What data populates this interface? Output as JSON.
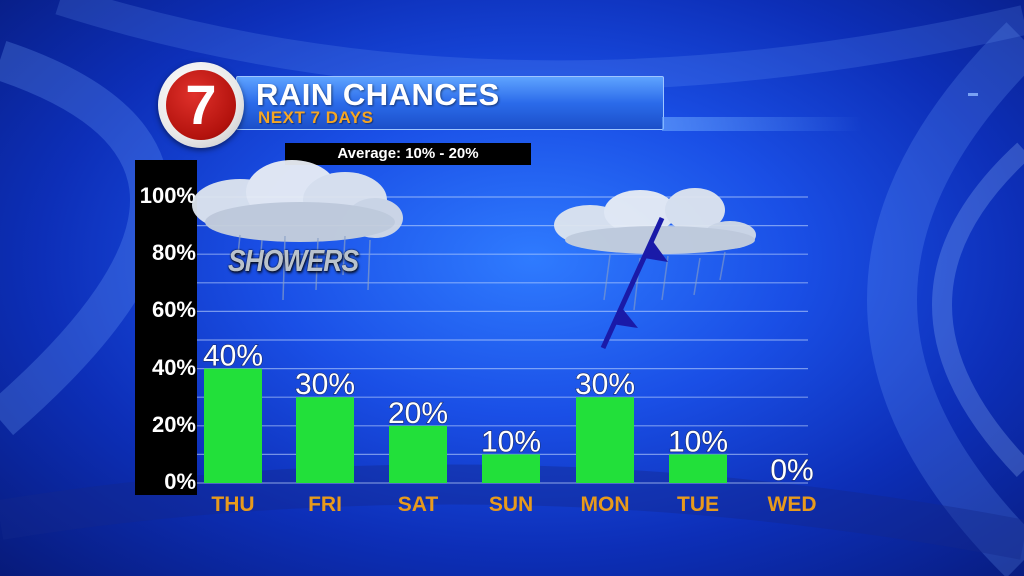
{
  "header": {
    "logo_text": "7",
    "title": "RAIN CHANCES",
    "subtitle": "NEXT 7 DAYS",
    "average_text": "Average: 10% - 20%"
  },
  "annotations": {
    "cloud_label": "SHOWERS",
    "front_icon": "cold-front-icon",
    "cloud_icon": "cloud-icon"
  },
  "colors": {
    "bar": "#22e03a",
    "day_label": "#e89a1c",
    "value_label": "#ffffff",
    "title_accent": "#f5a623",
    "logo_red": "#c4140e"
  },
  "chart_data": {
    "type": "bar",
    "title": "RAIN CHANCES",
    "subtitle": "NEXT 7 DAYS",
    "categories": [
      "THU",
      "FRI",
      "SAT",
      "SUN",
      "MON",
      "TUE",
      "WED"
    ],
    "values": [
      40,
      30,
      20,
      10,
      30,
      10,
      0
    ],
    "value_labels": [
      "40%",
      "30%",
      "20%",
      "10%",
      "30%",
      "10%",
      "0%"
    ],
    "ylim": [
      0,
      100
    ],
    "y_ticks": [
      0,
      20,
      40,
      60,
      80,
      100
    ],
    "y_tick_labels": [
      "0%",
      "20%",
      "40%",
      "60%",
      "80%",
      "100%"
    ],
    "xlabel": "",
    "ylabel": "",
    "grid": true
  }
}
